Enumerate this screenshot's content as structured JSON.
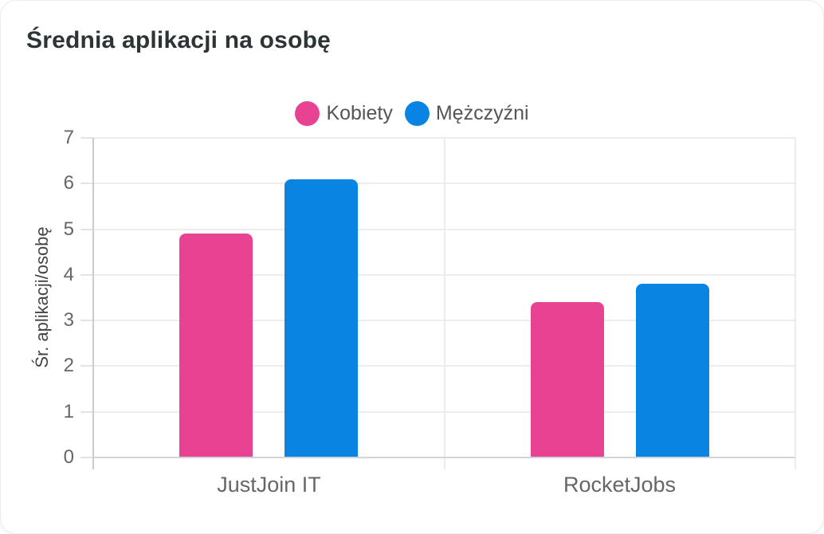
{
  "chart_data": {
    "type": "bar",
    "title": "Średnia aplikacji na osobę",
    "categories": [
      "JustJoin IT",
      "RocketJobs"
    ],
    "series": [
      {
        "name": "Kobiety",
        "color": "#e84393",
        "values": [
          4.9,
          3.4
        ]
      },
      {
        "name": "Mężczyźni",
        "color": "#0984e3",
        "values": [
          6.1,
          3.8
        ]
      }
    ],
    "xlabel": "",
    "ylabel": "Śr. aplikacji/osobę",
    "ylim": [
      0,
      7
    ],
    "yticks": [
      0,
      1,
      2,
      3,
      4,
      5,
      6,
      7
    ],
    "grid": true,
    "legend_position": "top",
    "background": "#ffffff",
    "title_color": "#2d3436",
    "axis_text_color": "#666666"
  }
}
